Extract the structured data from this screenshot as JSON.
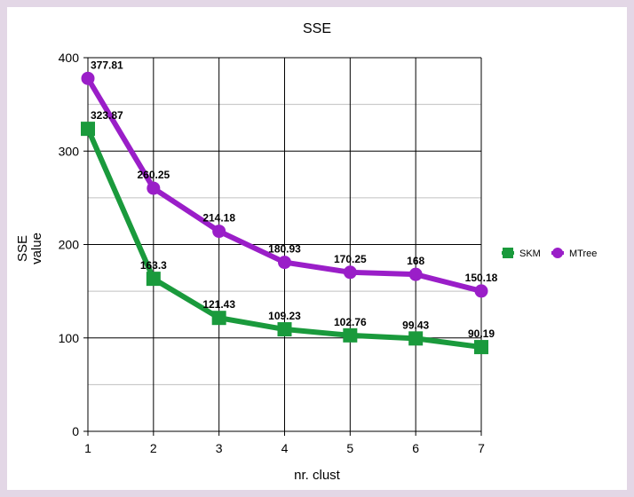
{
  "chart_data": {
    "type": "line",
    "title": "SSE",
    "xlabel": "nr. clust",
    "ylabel_lines": [
      "SSE",
      "value"
    ],
    "x": [
      1,
      2,
      3,
      4,
      5,
      6,
      7
    ],
    "ylim": [
      0,
      400
    ],
    "yticks": [
      0,
      100,
      200,
      300,
      400
    ],
    "grid": true,
    "legend_position": "right",
    "series": [
      {
        "name": "SKM",
        "marker": "square",
        "color": "#1a9a3c",
        "values": [
          323.87,
          163.3,
          121.43,
          109.23,
          102.76,
          99.43,
          90.19
        ],
        "labels": [
          "323.87",
          "163.3",
          "121.43",
          "109.23",
          "102.76",
          "99.43",
          "90.19"
        ]
      },
      {
        "name": "MTree",
        "marker": "circle",
        "color": "#9a1ec8",
        "values": [
          377.81,
          260.25,
          214.18,
          180.93,
          170.25,
          168,
          150.18
        ],
        "labels": [
          "377.81",
          "260.25",
          "214.18",
          "180.93",
          "170.25",
          "168",
          "150.18"
        ]
      }
    ]
  },
  "colors": {
    "frame": "#e3d7e6",
    "grid_major": "#000000",
    "grid_minor": "#c0c0c0"
  }
}
